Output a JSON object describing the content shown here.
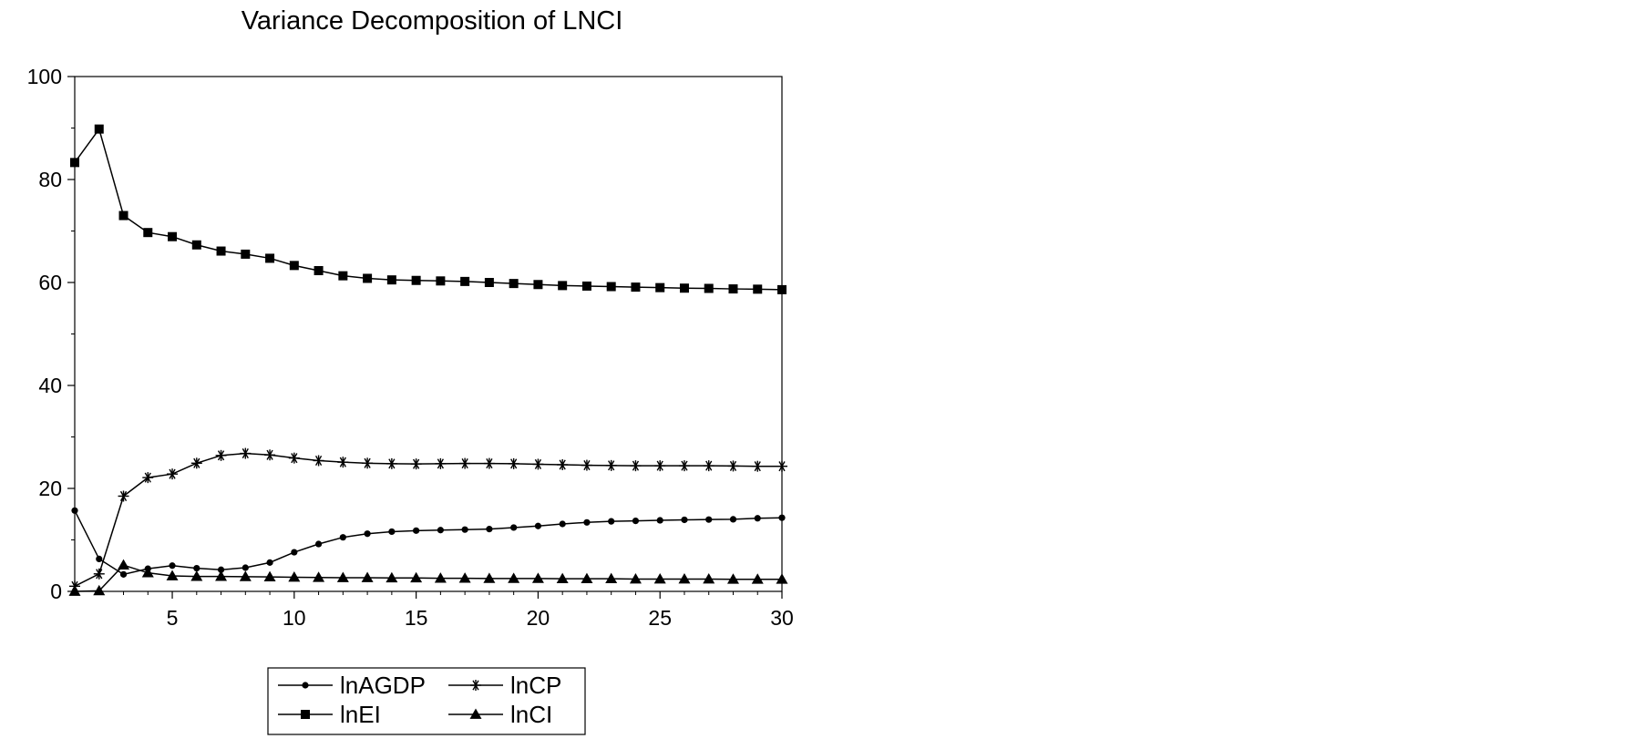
{
  "chart_data": {
    "type": "line",
    "title": "Variance Decomposition of LNCI",
    "xlabel": "",
    "ylabel": "",
    "xlim": [
      1,
      30
    ],
    "ylim": [
      0,
      100
    ],
    "x_ticks": [
      5,
      10,
      15,
      20,
      25,
      30
    ],
    "y_ticks": [
      0,
      20,
      40,
      60,
      80,
      100
    ],
    "grid": false,
    "legend_position": "bottom",
    "x": [
      1,
      2,
      3,
      4,
      5,
      6,
      7,
      8,
      9,
      10,
      11,
      12,
      13,
      14,
      15,
      16,
      17,
      18,
      19,
      20,
      21,
      22,
      23,
      24,
      25,
      26,
      27,
      28,
      29,
      30
    ],
    "series": [
      {
        "name": "lnAGDP",
        "marker": "circle",
        "values": [
          15.7,
          6.3,
          3.3,
          4.4,
          5.0,
          4.5,
          4.2,
          4.6,
          5.6,
          7.6,
          9.2,
          10.5,
          11.2,
          11.6,
          11.8,
          11.9,
          12.0,
          12.1,
          12.4,
          12.7,
          13.1,
          13.4,
          13.6,
          13.7,
          13.8,
          13.9,
          13.95,
          14.0,
          14.2,
          14.3
        ]
      },
      {
        "name": "lnCP",
        "marker": "star",
        "values": [
          1.0,
          3.4,
          18.5,
          22.1,
          22.8,
          24.9,
          26.4,
          26.8,
          26.5,
          25.9,
          25.4,
          25.1,
          24.9,
          24.8,
          24.75,
          24.8,
          24.85,
          24.85,
          24.8,
          24.7,
          24.6,
          24.5,
          24.45,
          24.4,
          24.4,
          24.4,
          24.4,
          24.35,
          24.3,
          24.3
        ]
      },
      {
        "name": "lnEI",
        "marker": "square",
        "values": [
          83.3,
          89.8,
          73.0,
          69.7,
          68.9,
          67.3,
          66.1,
          65.5,
          64.7,
          63.3,
          62.3,
          61.3,
          60.8,
          60.5,
          60.4,
          60.3,
          60.2,
          60.0,
          59.8,
          59.6,
          59.4,
          59.3,
          59.2,
          59.1,
          59.0,
          58.9,
          58.85,
          58.75,
          58.7,
          58.6
        ]
      },
      {
        "name": "lnCI",
        "marker": "triangle",
        "values": [
          0.0,
          0.1,
          5.1,
          3.6,
          3.0,
          2.9,
          2.9,
          2.85,
          2.8,
          2.75,
          2.7,
          2.65,
          2.65,
          2.6,
          2.6,
          2.55,
          2.55,
          2.5,
          2.5,
          2.5,
          2.45,
          2.45,
          2.45,
          2.4,
          2.4,
          2.4,
          2.4,
          2.35,
          2.35,
          2.35
        ]
      }
    ]
  },
  "colors": {
    "background": "#ffffff",
    "ink": "#000000"
  }
}
